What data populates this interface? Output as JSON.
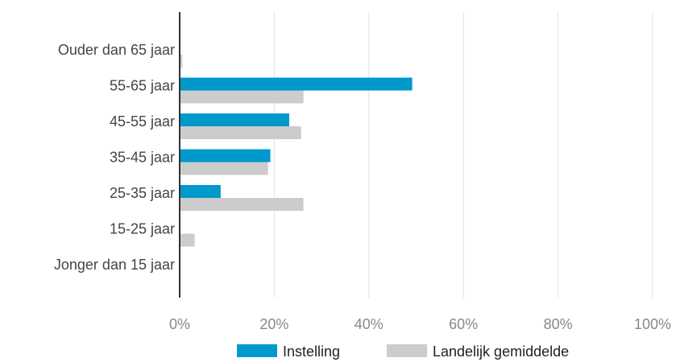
{
  "chart_data": {
    "type": "bar",
    "orientation": "horizontal",
    "categories": [
      "Ouder dan 65 jaar",
      "55-65 jaar",
      "45-55 jaar",
      "35-45 jaar",
      "25-35 jaar",
      "15-25 jaar",
      "Jonger dan 15 jaar"
    ],
    "series": [
      {
        "name": "Instelling",
        "color": "#0099cc",
        "values": [
          0,
          49,
          23,
          19,
          8.5,
          0,
          0
        ]
      },
      {
        "name": "Landelijk gemiddelde",
        "color": "#cccccc",
        "values": [
          0.4,
          26,
          25.5,
          18.5,
          26,
          3,
          0
        ]
      }
    ],
    "x_ticks": [
      "0%",
      "20%",
      "40%",
      "60%",
      "80%",
      "100%"
    ],
    "xlim": [
      0,
      100
    ],
    "grid": true,
    "legend_position": "bottom"
  }
}
